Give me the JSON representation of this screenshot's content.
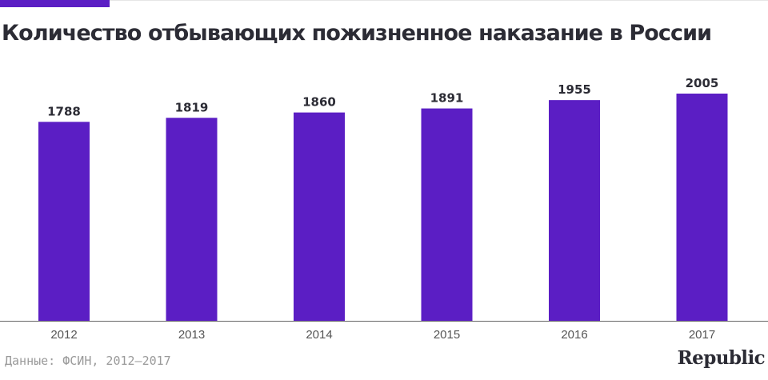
{
  "source": "Данные: ФСИН, 2012–2017",
  "logo": "Republic",
  "colors": {
    "bar": "#5b1ec4",
    "accent": "#5b1ec4",
    "text": "#2c2c35",
    "axis": "#555555"
  },
  "chart_data": {
    "type": "bar",
    "title": "Количество отбывающих пожизненное наказание в России",
    "categories": [
      "2012",
      "2013",
      "2014",
      "2015",
      "2016",
      "2017"
    ],
    "values": [
      1788,
      1819,
      1860,
      1891,
      1955,
      2005
    ],
    "data_labels": true,
    "grid": false,
    "legend": "none"
  }
}
